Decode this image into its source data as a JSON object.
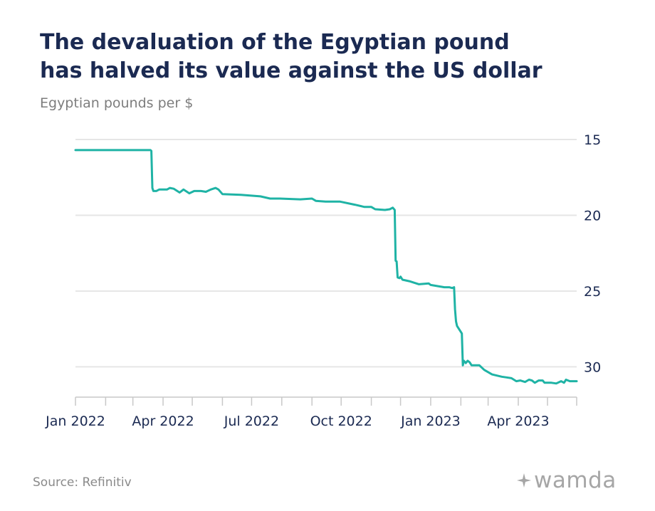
{
  "header": {
    "title_line1": "The devaluation of the Egyptian pound",
    "title_line2": "has halved its value against the US dollar",
    "subtitle": "Egyptian pounds per $"
  },
  "footer": {
    "source": "Source: Refinitiv",
    "logo_text": "wamda",
    "logo_icon": "sparkle-icon"
  },
  "colors": {
    "line": "#1fb3a5",
    "title": "#1b2a52",
    "grid": "#e6e6e6",
    "axis": "#c8c8c8",
    "tick_label": "#1b2a52"
  },
  "chart_data": {
    "type": "line",
    "title": "The devaluation of the Egyptian pound has halved its value against the US dollar",
    "subtitle": "Egyptian pounds per $",
    "xlabel": "",
    "ylabel": "",
    "y_axis_side": "right",
    "y_inverted": true,
    "ylim": [
      15,
      32
    ],
    "y_ticks": [
      15,
      20,
      25,
      30
    ],
    "xlim": [
      "2022-01-01",
      "2023-05-31"
    ],
    "x_ticks": [
      {
        "date": "2022-01-01",
        "label": "Jan 2022"
      },
      {
        "date": "2022-04-01",
        "label": "Apr 2022"
      },
      {
        "date": "2022-07-01",
        "label": "Jul 2022"
      },
      {
        "date": "2022-10-01",
        "label": "Oct 2022"
      },
      {
        "date": "2023-01-01",
        "label": "Jan 2023"
      },
      {
        "date": "2023-04-01",
        "label": "Apr 2023"
      }
    ],
    "x_minor_ticks": [
      "2022-02-01",
      "2022-03-01",
      "2022-05-01",
      "2022-06-01",
      "2022-08-01",
      "2022-09-01",
      "2022-11-01",
      "2022-12-01",
      "2023-02-01",
      "2023-03-01",
      "2023-05-01",
      "2023-05-31"
    ],
    "grid": true,
    "series": [
      {
        "points": [
          [
            "2022-01-01",
            15.7
          ],
          [
            "2022-03-19",
            15.7
          ],
          [
            "2022-03-20",
            15.75
          ],
          [
            "2022-03-21",
            18.2
          ],
          [
            "2022-03-22",
            18.4
          ],
          [
            "2022-03-25",
            18.4
          ],
          [
            "2022-03-28",
            18.3
          ],
          [
            "2022-04-05",
            18.3
          ],
          [
            "2022-04-08",
            18.2
          ],
          [
            "2022-04-12",
            18.25
          ],
          [
            "2022-04-18",
            18.5
          ],
          [
            "2022-04-22",
            18.3
          ],
          [
            "2022-04-28",
            18.55
          ],
          [
            "2022-05-03",
            18.4
          ],
          [
            "2022-05-10",
            18.4
          ],
          [
            "2022-05-15",
            18.45
          ],
          [
            "2022-05-20",
            18.3
          ],
          [
            "2022-05-25",
            18.2
          ],
          [
            "2022-05-28",
            18.3
          ],
          [
            "2022-06-01",
            18.6
          ],
          [
            "2022-06-20",
            18.65
          ],
          [
            "2022-07-10",
            18.75
          ],
          [
            "2022-07-20",
            18.9
          ],
          [
            "2022-07-30",
            18.9
          ],
          [
            "2022-08-20",
            18.95
          ],
          [
            "2022-09-01",
            18.9
          ],
          [
            "2022-09-05",
            19.05
          ],
          [
            "2022-09-15",
            19.1
          ],
          [
            "2022-09-30",
            19.1
          ],
          [
            "2022-10-15",
            19.3
          ],
          [
            "2022-10-25",
            19.45
          ],
          [
            "2022-11-01",
            19.45
          ],
          [
            "2022-11-05",
            19.6
          ],
          [
            "2022-11-15",
            19.65
          ],
          [
            "2022-11-20",
            19.6
          ],
          [
            "2022-11-23",
            19.5
          ],
          [
            "2022-11-25",
            19.65
          ],
          [
            "2022-11-26",
            23.0
          ],
          [
            "2022-11-27",
            23.05
          ],
          [
            "2022-11-28",
            24.1
          ],
          [
            "2022-11-30",
            24.15
          ],
          [
            "2022-12-01",
            24.05
          ],
          [
            "2022-12-03",
            24.25
          ],
          [
            "2022-12-10",
            24.35
          ],
          [
            "2022-12-20",
            24.55
          ],
          [
            "2022-12-30",
            24.5
          ],
          [
            "2023-01-01",
            24.6
          ],
          [
            "2023-01-15",
            24.75
          ],
          [
            "2023-01-20",
            24.75
          ],
          [
            "2023-01-23",
            24.8
          ],
          [
            "2023-01-25",
            24.75
          ],
          [
            "2023-01-26",
            26.2
          ],
          [
            "2023-01-27",
            27.0
          ],
          [
            "2023-01-28",
            27.3
          ],
          [
            "2023-02-02",
            27.8
          ],
          [
            "2023-02-03",
            29.9
          ],
          [
            "2023-02-04",
            29.6
          ],
          [
            "2023-02-06",
            29.75
          ],
          [
            "2023-02-08",
            29.6
          ],
          [
            "2023-02-10",
            29.7
          ],
          [
            "2023-02-12",
            29.9
          ],
          [
            "2023-02-20",
            29.9
          ],
          [
            "2023-02-25",
            30.2
          ],
          [
            "2023-03-05",
            30.5
          ],
          [
            "2023-03-15",
            30.65
          ],
          [
            "2023-03-20",
            30.7
          ],
          [
            "2023-03-25",
            30.75
          ],
          [
            "2023-03-30",
            30.95
          ],
          [
            "2023-04-03",
            30.9
          ],
          [
            "2023-04-08",
            31.0
          ],
          [
            "2023-04-12",
            30.85
          ],
          [
            "2023-04-15",
            30.9
          ],
          [
            "2023-04-18",
            31.05
          ],
          [
            "2023-04-22",
            30.9
          ],
          [
            "2023-04-26",
            30.9
          ],
          [
            "2023-04-28",
            31.05
          ],
          [
            "2023-05-05",
            31.05
          ],
          [
            "2023-05-10",
            31.1
          ],
          [
            "2023-05-15",
            30.95
          ],
          [
            "2023-05-18",
            31.05
          ],
          [
            "2023-05-20",
            30.85
          ],
          [
            "2023-05-24",
            30.95
          ],
          [
            "2023-05-31",
            30.95
          ]
        ]
      }
    ]
  }
}
